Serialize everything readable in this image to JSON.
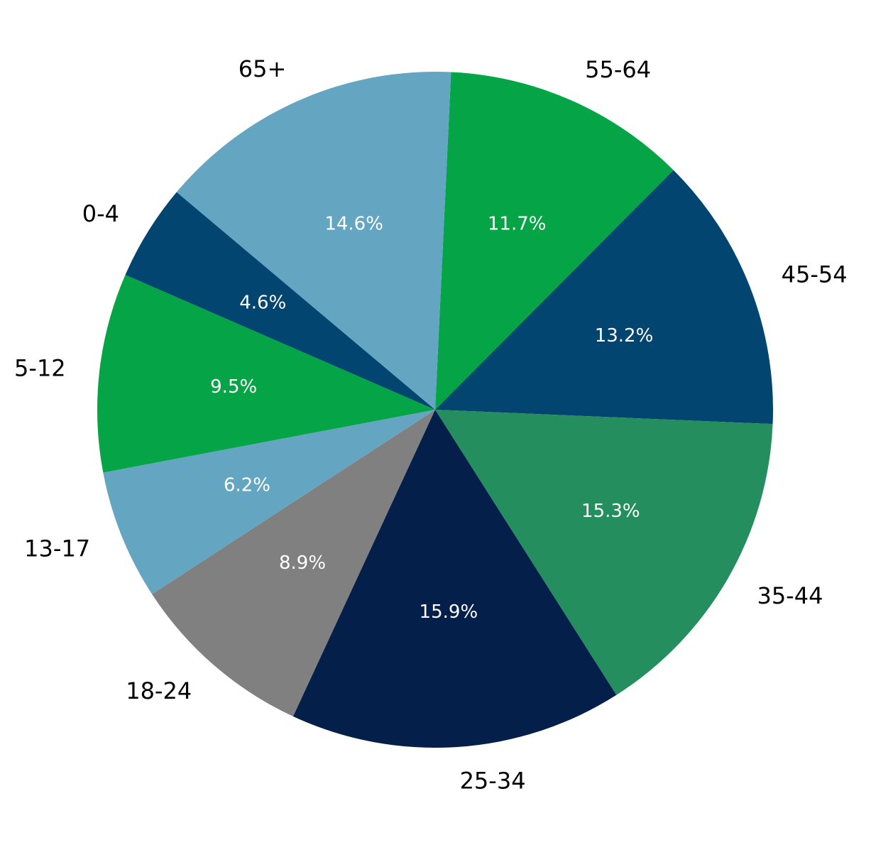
{
  "chart_data": {
    "type": "pie",
    "title": "",
    "start_angle_deg": 87.3,
    "direction": "clockwise",
    "slices": [
      {
        "label": "55-64",
        "value": 11.7,
        "pct_label": "11.7%",
        "color": "#05A446"
      },
      {
        "label": "45-54",
        "value": 13.2,
        "pct_label": "13.2%",
        "color": "#034571"
      },
      {
        "label": "35-44",
        "value": 15.3,
        "pct_label": "15.3%",
        "color": "#248E5E"
      },
      {
        "label": "25-34",
        "value": 15.9,
        "pct_label": "15.9%",
        "color": "#041F4A"
      },
      {
        "label": "18-24",
        "value": 8.9,
        "pct_label": "8.9%",
        "color": "#808080"
      },
      {
        "label": "13-17",
        "value": 6.2,
        "pct_label": "6.2%",
        "color": "#64A5C1"
      },
      {
        "label": "5-12",
        "value": 9.5,
        "pct_label": "9.5%",
        "color": "#05A446"
      },
      {
        "label": "0-4",
        "value": 4.6,
        "pct_label": "4.6%",
        "color": "#034571"
      },
      {
        "label": "65+",
        "value": 14.6,
        "pct_label": "14.6%",
        "color": "#64A5C1"
      }
    ]
  }
}
